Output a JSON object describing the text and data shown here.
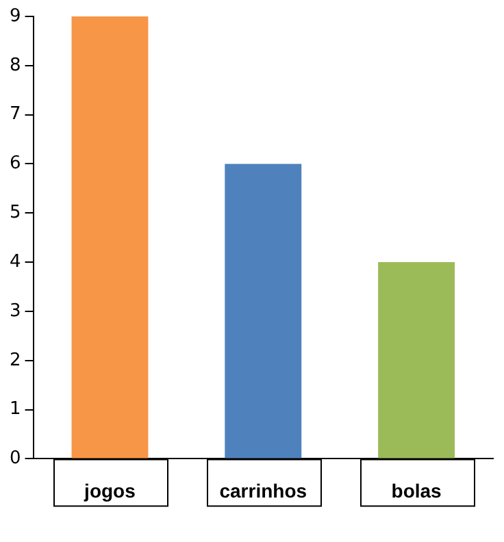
{
  "chart_data": {
    "type": "bar",
    "categories": [
      "jogos",
      "carrinhos",
      "bolas"
    ],
    "values": [
      9,
      6,
      4
    ],
    "colors": [
      "#f79646",
      "#4f81bd",
      "#9bbb59"
    ],
    "ylim": [
      0,
      9
    ],
    "yticks": [
      0,
      1,
      2,
      3,
      4,
      5,
      6,
      7,
      8,
      9
    ],
    "grid": false,
    "legend": false
  }
}
